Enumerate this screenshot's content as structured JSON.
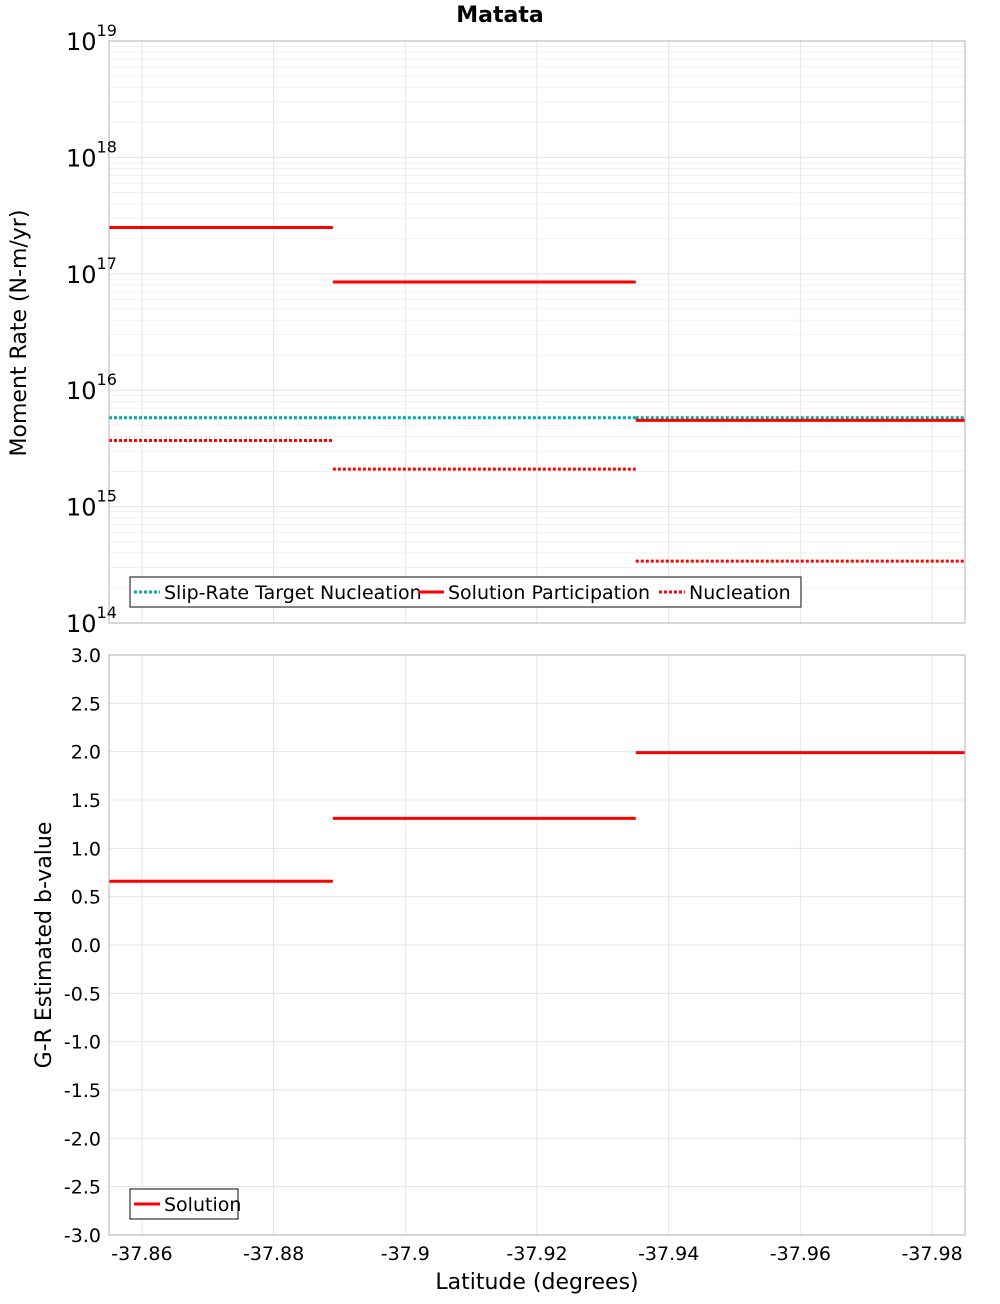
{
  "title": "Matata",
  "xlabel": "Latitude (degrees)",
  "x_range": [
    -37.855,
    -37.985
  ],
  "x_ticks": [
    -37.86,
    -37.88,
    -37.9,
    -37.92,
    -37.94,
    -37.96,
    -37.98
  ],
  "x_tick_labels": [
    "-37.86",
    "-37.88",
    "-37.9",
    "-37.92",
    "-37.94",
    "-37.96",
    "-37.98"
  ],
  "colors": {
    "solution": "#ff0000",
    "target": "#00aaaa",
    "nucleation": "#ff0000",
    "grid": "#e6e6e6",
    "frame": "#b0b0b0"
  },
  "chart_data": [
    {
      "type": "line",
      "name": "moment-rate",
      "scale": "log",
      "ylabel": "Moment Rate (N-m/yr)",
      "ylim_exp": [
        14,
        19
      ],
      "y_tick_exponents": [
        "14",
        "15",
        "16",
        "17",
        "18",
        "19"
      ],
      "legend": {
        "position": "bottom-left",
        "entries": [
          {
            "label": "Slip-Rate Target Nucleation",
            "style": "dotted",
            "series": "target"
          },
          {
            "label": "Solution Participation",
            "style": "solid",
            "series": "solution"
          },
          {
            "label": "Nucleation",
            "style": "dotted",
            "series": "nucleation"
          }
        ]
      },
      "series": [
        {
          "id": "target",
          "name": "Slip-Rate Target Nucleation",
          "style": "dotted",
          "segments": [
            {
              "x0": -37.855,
              "x1": -37.889,
              "y": 5800000000000000.0
            },
            {
              "x0": -37.889,
              "x1": -37.935,
              "y": 5800000000000000.0
            },
            {
              "x0": -37.935,
              "x1": -37.985,
              "y": 5800000000000000.0
            }
          ]
        },
        {
          "id": "solution",
          "name": "Solution Participation",
          "style": "solid",
          "segments": [
            {
              "x0": -37.855,
              "x1": -37.889,
              "y": 2.5e+17
            },
            {
              "x0": -37.889,
              "x1": -37.935,
              "y": 8.5e+16
            },
            {
              "x0": -37.935,
              "x1": -37.985,
              "y": 5500000000000000.0
            }
          ]
        },
        {
          "id": "nucleation",
          "name": "Nucleation",
          "style": "dotted",
          "segments": [
            {
              "x0": -37.855,
              "x1": -37.889,
              "y": 3700000000000000.0
            },
            {
              "x0": -37.889,
              "x1": -37.935,
              "y": 2100000000000000.0
            },
            {
              "x0": -37.935,
              "x1": -37.985,
              "y": 340000000000000.0
            }
          ]
        }
      ]
    },
    {
      "type": "line",
      "name": "b-value",
      "ylabel": "G-R Estimated b-value",
      "ylim": [
        -3.0,
        3.0
      ],
      "y_ticks": [
        3.0,
        2.5,
        2.0,
        1.5,
        1.0,
        0.5,
        0.0,
        -0.5,
        -1.0,
        -1.5,
        -2.0,
        -2.5,
        -3.0
      ],
      "y_tick_labels": [
        "3.0",
        "2.5",
        "2.0",
        "1.5",
        "1.0",
        "0.5",
        "0.0",
        "-0.5",
        "-1.0",
        "-1.5",
        "-2.0",
        "-2.5",
        "-3.0"
      ],
      "legend": {
        "position": "bottom-left",
        "entries": [
          {
            "label": "Solution",
            "style": "solid",
            "series": "solution"
          }
        ]
      },
      "series": [
        {
          "id": "solution",
          "name": "Solution",
          "style": "solid",
          "segments": [
            {
              "x0": -37.855,
              "x1": -37.889,
              "y": 0.66
            },
            {
              "x0": -37.889,
              "x1": -37.935,
              "y": 1.31
            },
            {
              "x0": -37.935,
              "x1": -37.985,
              "y": 1.99
            }
          ]
        }
      ]
    }
  ]
}
